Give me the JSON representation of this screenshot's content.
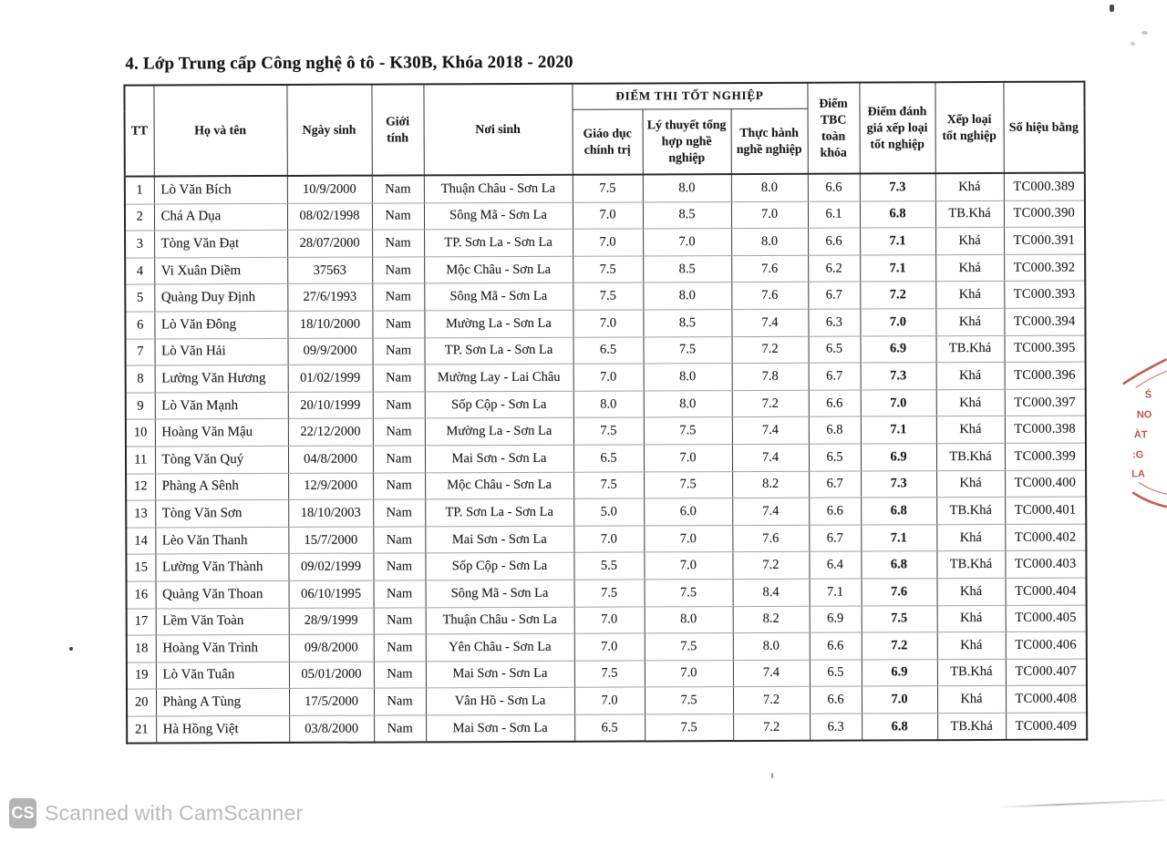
{
  "doc": {
    "title": "4. Lớp Trung cấp Công nghệ ô tô - K30B, Khóa 2018 - 2020"
  },
  "table": {
    "header": {
      "tt": "TT",
      "name": "Họ và tên",
      "dob": "Ngày sinh",
      "gender": "Giới tính",
      "birthplace": "Nơi sinh",
      "exam_group": "ĐIỂM THI TỐT NGHIỆP",
      "politics": "Giáo dục chính trị",
      "theory": "Lý thuyết tổng hợp nghề nghiệp",
      "practice": "Thực hành nghề nghiệp",
      "gpa": "Điểm TBC toàn khóa",
      "eval": "Điểm đánh giá xếp loại tốt nghiệp",
      "rank": "Xếp loại tốt nghiệp",
      "cert": "Số hiệu bằng"
    },
    "rows": [
      [
        "1",
        "Lò Văn Bích",
        "10/9/2000",
        "Nam",
        "Thuận Châu - Sơn La",
        "7.5",
        "8.0",
        "8.0",
        "6.6",
        "7.3",
        "Khá",
        "TC000.389"
      ],
      [
        "2",
        "Chá A Dụa",
        "08/02/1998",
        "Nam",
        "Sông Mã - Sơn La",
        "7.0",
        "8.5",
        "7.0",
        "6.1",
        "6.8",
        "TB.Khá",
        "TC000.390"
      ],
      [
        "3",
        "Tòng Văn Đạt",
        "28/07/2000",
        "Nam",
        "TP. Sơn La - Sơn La",
        "7.0",
        "7.0",
        "8.0",
        "6.6",
        "7.1",
        "Khá",
        "TC000.391"
      ],
      [
        "4",
        "Vi Xuân Diềm",
        "37563",
        "Nam",
        "Mộc Châu - Sơn La",
        "7.5",
        "8.5",
        "7.6",
        "6.2",
        "7.1",
        "Khá",
        "TC000.392"
      ],
      [
        "5",
        "Quàng Duy Định",
        "27/6/1993",
        "Nam",
        "Sông Mã - Sơn La",
        "7.5",
        "8.0",
        "7.6",
        "6.7",
        "7.2",
        "Khá",
        "TC000.393"
      ],
      [
        "6",
        "Lò Văn Đông",
        "18/10/2000",
        "Nam",
        "Mường La - Sơn La",
        "7.0",
        "8.5",
        "7.4",
        "6.3",
        "7.0",
        "Khá",
        "TC000.394"
      ],
      [
        "7",
        "Lò Văn Hải",
        "09/9/2000",
        "Nam",
        "TP. Sơn La - Sơn La",
        "6.5",
        "7.5",
        "7.2",
        "6.5",
        "6.9",
        "TB.Khá",
        "TC000.395"
      ],
      [
        "8",
        "Lường Văn Hương",
        "01/02/1999",
        "Nam",
        "Mường Lay - Lai Châu",
        "7.0",
        "8.0",
        "7.8",
        "6.7",
        "7.3",
        "Khá",
        "TC000.396"
      ],
      [
        "9",
        "Lò Văn Mạnh",
        "20/10/1999",
        "Nam",
        "Sốp Cộp - Sơn La",
        "8.0",
        "8.0",
        "7.2",
        "6.6",
        "7.0",
        "Khá",
        "TC000.397"
      ],
      [
        "10",
        "Hoàng Văn Mậu",
        "22/12/2000",
        "Nam",
        "Mường La - Sơn La",
        "7.5",
        "7.5",
        "7.4",
        "6.8",
        "7.1",
        "Khá",
        "TC000.398"
      ],
      [
        "11",
        "Tòng Văn Quý",
        "04/8/2000",
        "Nam",
        "Mai Sơn - Sơn La",
        "6.5",
        "7.0",
        "7.4",
        "6.5",
        "6.9",
        "TB.Khá",
        "TC000.399"
      ],
      [
        "12",
        "Phàng A Sênh",
        "12/9/2000",
        "Nam",
        "Mộc Châu - Sơn La",
        "7.5",
        "7.5",
        "8.2",
        "6.7",
        "7.3",
        "Khá",
        "TC000.400"
      ],
      [
        "13",
        "Tòng Văn Sơn",
        "18/10/2003",
        "Nam",
        "TP. Sơn La - Sơn La",
        "5.0",
        "6.0",
        "7.4",
        "6.6",
        "6.8",
        "TB.Khá",
        "TC000.401"
      ],
      [
        "14",
        "Lèo Văn Thanh",
        "15/7/2000",
        "Nam",
        "Mai Sơn - Sơn La",
        "7.0",
        "7.0",
        "7.6",
        "6.7",
        "7.1",
        "Khá",
        "TC000.402"
      ],
      [
        "15",
        "Lường Văn Thành",
        "09/02/1999",
        "Nam",
        "Sốp Cộp - Sơn La",
        "5.5",
        "7.0",
        "7.2",
        "6.4",
        "6.8",
        "TB.Khá",
        "TC000.403"
      ],
      [
        "16",
        "Quàng Văn Thoan",
        "06/10/1995",
        "Nam",
        "Sông Mã - Sơn La",
        "7.5",
        "7.5",
        "8.4",
        "7.1",
        "7.6",
        "Khá",
        "TC000.404"
      ],
      [
        "17",
        "Lềm Văn Toàn",
        "28/9/1999",
        "Nam",
        "Thuận Châu - Sơn La",
        "7.0",
        "8.0",
        "8.2",
        "6.9",
        "7.5",
        "Khá",
        "TC000.405"
      ],
      [
        "18",
        "Hoàng Văn Trình",
        "09/8/2000",
        "Nam",
        "Yên Châu - Sơn La",
        "7.0",
        "7.5",
        "8.0",
        "6.6",
        "7.2",
        "Khá",
        "TC000.406"
      ],
      [
        "19",
        "Lò Văn Tuân",
        "05/01/2000",
        "Nam",
        "Mai Sơn - Sơn La",
        "7.5",
        "7.0",
        "7.4",
        "6.5",
        "6.9",
        "TB.Khá",
        "TC000.407"
      ],
      [
        "20",
        "Phàng A Tùng",
        "17/5/2000",
        "Nam",
        "Vân Hồ - Sơn La",
        "7.0",
        "7.5",
        "7.2",
        "6.6",
        "7.0",
        "Khá",
        "TC000.408"
      ],
      [
        "21",
        "Hà Hồng Việt",
        "03/8/2000",
        "Nam",
        "Mai Sơn - Sơn La",
        "6.5",
        "7.5",
        "7.2",
        "6.3",
        "6.8",
        "TB.Khá",
        "TC000.409"
      ]
    ]
  },
  "stamp": {
    "fragments": [
      "Ś",
      "NO",
      "ÀT",
      ":G",
      "LA"
    ]
  },
  "watermark": {
    "badge": "CS",
    "text": "Scanned with CamScanner"
  },
  "colors": {
    "stamp_red": "#b8352a",
    "watermark_gray": "#bababa",
    "ink": "#1d1d1d"
  }
}
